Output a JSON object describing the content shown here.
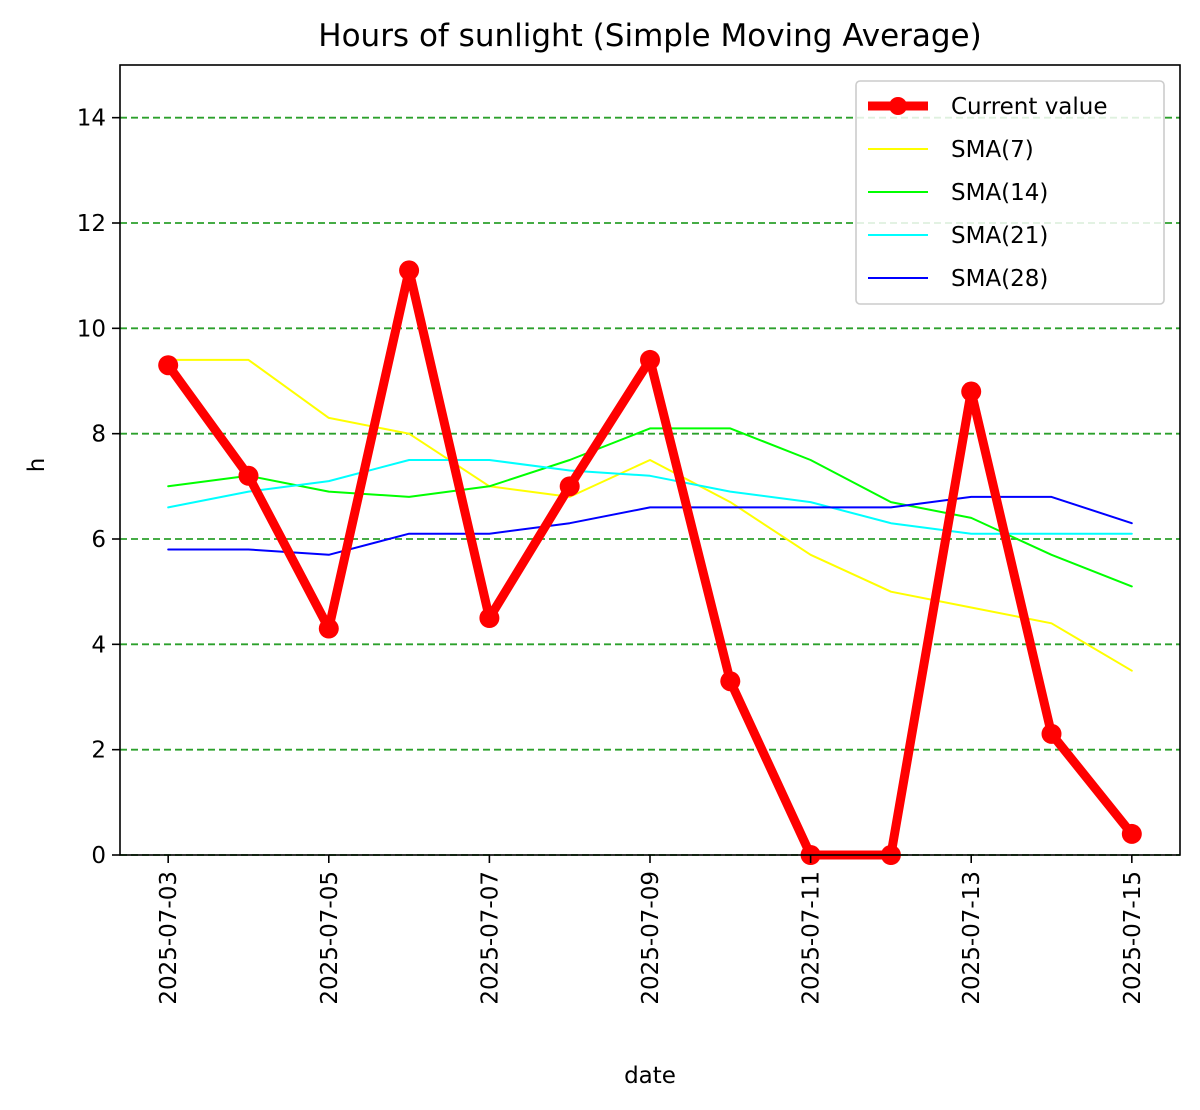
{
  "chart_data": {
    "type": "line",
    "title": "Hours of sunlight (Simple Moving Average)",
    "xlabel": "date",
    "ylabel": "h",
    "ylim": [
      0,
      15
    ],
    "xlim": [
      "2025-07-02",
      "2025-07-15"
    ],
    "yticks": [
      0,
      2,
      4,
      6,
      8,
      10,
      12,
      14
    ],
    "xticks": [
      "2025-07-03",
      "2025-07-05",
      "2025-07-07",
      "2025-07-09",
      "2025-07-11",
      "2025-07-13",
      "2025-07-15"
    ],
    "grid": "y-dashed",
    "grid_color": "#2ca02c",
    "legend_position": "top-right",
    "x": [
      "2025-07-03",
      "2025-07-04",
      "2025-07-05",
      "2025-07-06",
      "2025-07-07",
      "2025-07-08",
      "2025-07-09",
      "2025-07-10",
      "2025-07-11",
      "2025-07-12",
      "2025-07-13",
      "2025-07-14",
      "2025-07-15"
    ],
    "series": [
      {
        "name": "Current value",
        "color": "#ff0000",
        "markers": true,
        "values": [
          9.3,
          7.2,
          4.3,
          11.1,
          4.5,
          7.0,
          9.4,
          3.3,
          0.0,
          0.0,
          8.8,
          2.3,
          0.4
        ]
      },
      {
        "name": "SMA(7)",
        "color": "#ffff00",
        "values": [
          9.4,
          9.4,
          8.3,
          8.0,
          7.0,
          6.8,
          7.5,
          6.7,
          5.7,
          5.0,
          4.7,
          4.4,
          3.5
        ]
      },
      {
        "name": "SMA(14)",
        "color": "#00ff00",
        "values": [
          7.0,
          7.2,
          6.9,
          6.8,
          7.0,
          7.5,
          8.1,
          8.1,
          7.5,
          6.7,
          6.4,
          5.7,
          5.1
        ]
      },
      {
        "name": "SMA(21)",
        "color": "#00ffff",
        "values": [
          6.6,
          6.9,
          7.1,
          7.5,
          7.5,
          7.3,
          7.2,
          6.9,
          6.7,
          6.3,
          6.1,
          6.1,
          6.1
        ]
      },
      {
        "name": "SMA(28)",
        "color": "#0000ff",
        "values": [
          5.8,
          5.8,
          5.7,
          6.1,
          6.1,
          6.3,
          6.6,
          6.6,
          6.6,
          6.6,
          6.8,
          6.8,
          6.3
        ]
      }
    ]
  }
}
